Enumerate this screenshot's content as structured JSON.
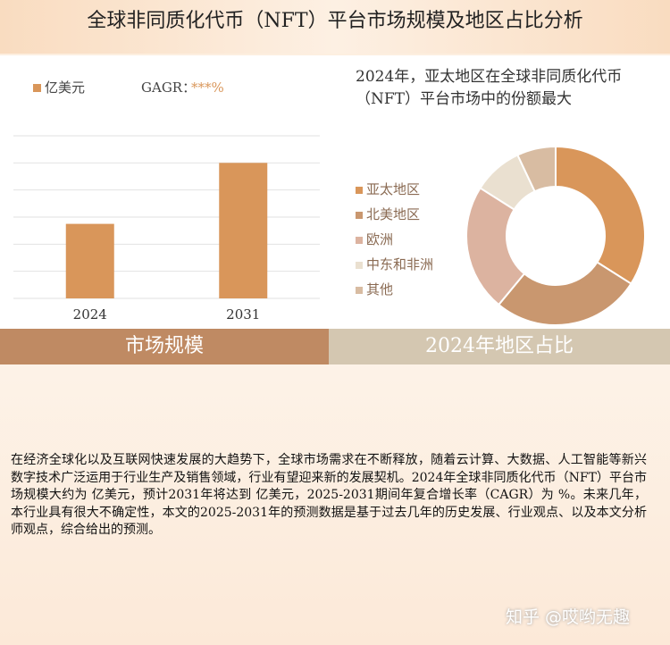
{
  "header": {
    "title": "全球非同质化代币（NFT）平台市场规模及地区占比分析"
  },
  "chart_data": [
    {
      "type": "bar",
      "categories": [
        "2024",
        "2031"
      ],
      "series": [
        {
          "name": "亿美元",
          "color": "#d9965a",
          "values": [
            2.75,
            5.0
          ]
        }
      ],
      "cagr_label": "GAGR：",
      "cagr_value": "***%",
      "ylim": [
        0,
        6
      ],
      "yticks": [
        0,
        1,
        2,
        3,
        4,
        5,
        6
      ],
      "grid": true
    },
    {
      "type": "donut",
      "title": "2024年，亚太地区在全球非同质化代币（NFT）平台市场中的份额最大",
      "categories": [
        "亚太地区",
        "北美地区",
        "欧洲",
        "中东和非洲",
        "其他"
      ],
      "values": [
        34,
        27,
        23,
        9,
        7
      ],
      "colors": [
        "#d9965a",
        "#c9976f",
        "#dcb3a0",
        "#eae0d0",
        "#d8bca2"
      ]
    }
  ],
  "section_labels": [
    "市场规模",
    "2024年地区占比"
  ],
  "body": "在经济全球化以及互联网快速发展的大趋势下，全球市场需求在不断释放，随着云计算、大数据、人工智能等新兴数字技术广泛运用于行业生产及销售领域，行业有望迎来新的发展契机。2024年全球非同质化代币（NFT）平台市场规模大约为 亿美元，预计2031年将达到 亿美元，2025-2031期间年复合增长率（CAGR）为 %。未来几年，本行业具有很大不确定性，本文的2025-2031年的预测数据是基于过去几年的历史发展、行业观点、以及本文分析师观点，综合给出的预测。",
  "watermark": "知乎 @哎哟无趣"
}
